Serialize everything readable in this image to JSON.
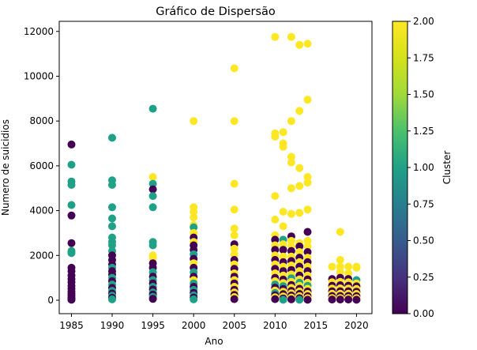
{
  "chart_data": {
    "type": "scatter",
    "title": "Gráfico de Dispersão",
    "xlabel": "Ano",
    "ylabel": "Numero de suicidios",
    "xlim": [
      1983.5,
      2021.9
    ],
    "ylim": [
      -600,
      12450
    ],
    "xticks": [
      1985,
      1990,
      1995,
      2000,
      2005,
      2010,
      2015,
      2020
    ],
    "yticks": [
      0,
      2000,
      4000,
      6000,
      8000,
      10000,
      12000
    ],
    "grid": false,
    "colorbar": {
      "label": "Cluster",
      "min": 0.0,
      "max": 2.0,
      "colormap": "viridis",
      "ticks": [
        "0.00",
        "0.25",
        "0.50",
        "0.75",
        "1.00",
        "1.25",
        "1.50",
        "1.75",
        "2.00"
      ]
    },
    "points": [
      {
        "x": 1985,
        "y": 6950,
        "c": 0
      },
      {
        "x": 1985,
        "y": 6050,
        "c": 1
      },
      {
        "x": 1985,
        "y": 5300,
        "c": 1
      },
      {
        "x": 1985,
        "y": 5150,
        "c": 1
      },
      {
        "x": 1985,
        "y": 4250,
        "c": 1
      },
      {
        "x": 1985,
        "y": 3780,
        "c": 0
      },
      {
        "x": 1985,
        "y": 2550,
        "c": 0
      },
      {
        "x": 1985,
        "y": 2200,
        "c": 1
      },
      {
        "x": 1985,
        "y": 2100,
        "c": 1
      },
      {
        "x": 1985,
        "y": 1450,
        "c": 0
      },
      {
        "x": 1985,
        "y": 1300,
        "c": 0
      },
      {
        "x": 1985,
        "y": 1100,
        "c": 0
      },
      {
        "x": 1985,
        "y": 950,
        "c": 0
      },
      {
        "x": 1985,
        "y": 800,
        "c": 0
      },
      {
        "x": 1985,
        "y": 650,
        "c": 0
      },
      {
        "x": 1985,
        "y": 520,
        "c": 0
      },
      {
        "x": 1985,
        "y": 400,
        "c": 0
      },
      {
        "x": 1985,
        "y": 300,
        "c": 0
      },
      {
        "x": 1985,
        "y": 200,
        "c": 0
      },
      {
        "x": 1985,
        "y": 120,
        "c": 0
      },
      {
        "x": 1985,
        "y": 60,
        "c": 0
      },
      {
        "x": 1985,
        "y": 20,
        "c": 0
      },
      {
        "x": 1990,
        "y": 7250,
        "c": 1
      },
      {
        "x": 1990,
        "y": 5350,
        "c": 1
      },
      {
        "x": 1990,
        "y": 5150,
        "c": 1
      },
      {
        "x": 1990,
        "y": 4150,
        "c": 1
      },
      {
        "x": 1990,
        "y": 3650,
        "c": 1
      },
      {
        "x": 1990,
        "y": 3300,
        "c": 1
      },
      {
        "x": 1990,
        "y": 2800,
        "c": 1
      },
      {
        "x": 1990,
        "y": 2600,
        "c": 1
      },
      {
        "x": 1990,
        "y": 2450,
        "c": 1
      },
      {
        "x": 1990,
        "y": 2200,
        "c": 1
      },
      {
        "x": 1990,
        "y": 2000,
        "c": 0
      },
      {
        "x": 1990,
        "y": 1800,
        "c": 0
      },
      {
        "x": 1990,
        "y": 1600,
        "c": 0
      },
      {
        "x": 1990,
        "y": 1450,
        "c": 1
      },
      {
        "x": 1990,
        "y": 1300,
        "c": 0
      },
      {
        "x": 1990,
        "y": 1150,
        "c": 0
      },
      {
        "x": 1990,
        "y": 1000,
        "c": 1
      },
      {
        "x": 1990,
        "y": 850,
        "c": 0
      },
      {
        "x": 1990,
        "y": 700,
        "c": 1
      },
      {
        "x": 1990,
        "y": 550,
        "c": 0
      },
      {
        "x": 1990,
        "y": 420,
        "c": 1
      },
      {
        "x": 1990,
        "y": 300,
        "c": 0
      },
      {
        "x": 1990,
        "y": 200,
        "c": 1
      },
      {
        "x": 1990,
        "y": 110,
        "c": 0
      },
      {
        "x": 1990,
        "y": 40,
        "c": 1
      },
      {
        "x": 1995,
        "y": 8550,
        "c": 1
      },
      {
        "x": 1995,
        "y": 5500,
        "c": 2
      },
      {
        "x": 1995,
        "y": 5200,
        "c": 1
      },
      {
        "x": 1995,
        "y": 4950,
        "c": 0
      },
      {
        "x": 1995,
        "y": 4650,
        "c": 1
      },
      {
        "x": 1995,
        "y": 4150,
        "c": 1
      },
      {
        "x": 1995,
        "y": 2600,
        "c": 1
      },
      {
        "x": 1995,
        "y": 2450,
        "c": 1
      },
      {
        "x": 1995,
        "y": 2000,
        "c": 2
      },
      {
        "x": 1995,
        "y": 1900,
        "c": 2
      },
      {
        "x": 1995,
        "y": 1650,
        "c": 0
      },
      {
        "x": 1995,
        "y": 1450,
        "c": 0
      },
      {
        "x": 1995,
        "y": 1250,
        "c": 1
      },
      {
        "x": 1995,
        "y": 1050,
        "c": 0
      },
      {
        "x": 1995,
        "y": 900,
        "c": 1
      },
      {
        "x": 1995,
        "y": 750,
        "c": 0
      },
      {
        "x": 1995,
        "y": 600,
        "c": 1
      },
      {
        "x": 1995,
        "y": 480,
        "c": 0
      },
      {
        "x": 1995,
        "y": 350,
        "c": 1
      },
      {
        "x": 1995,
        "y": 250,
        "c": 0
      },
      {
        "x": 1995,
        "y": 150,
        "c": 1
      },
      {
        "x": 1995,
        "y": 60,
        "c": 0
      },
      {
        "x": 2000,
        "y": 8000,
        "c": 2
      },
      {
        "x": 2000,
        "y": 4150,
        "c": 2
      },
      {
        "x": 2000,
        "y": 3950,
        "c": 2
      },
      {
        "x": 2000,
        "y": 3700,
        "c": 2
      },
      {
        "x": 2000,
        "y": 3350,
        "c": 2
      },
      {
        "x": 2000,
        "y": 3250,
        "c": 1
      },
      {
        "x": 2000,
        "y": 3000,
        "c": 2
      },
      {
        "x": 2000,
        "y": 2800,
        "c": 0
      },
      {
        "x": 2000,
        "y": 2600,
        "c": 2
      },
      {
        "x": 2000,
        "y": 2450,
        "c": 0
      },
      {
        "x": 2000,
        "y": 2250,
        "c": 0
      },
      {
        "x": 2000,
        "y": 2050,
        "c": 1
      },
      {
        "x": 2000,
        "y": 1850,
        "c": 0
      },
      {
        "x": 2000,
        "y": 1650,
        "c": 2
      },
      {
        "x": 2000,
        "y": 1450,
        "c": 0
      },
      {
        "x": 2000,
        "y": 1250,
        "c": 1
      },
      {
        "x": 2000,
        "y": 1050,
        "c": 0
      },
      {
        "x": 2000,
        "y": 900,
        "c": 2
      },
      {
        "x": 2000,
        "y": 750,
        "c": 1
      },
      {
        "x": 2000,
        "y": 600,
        "c": 0
      },
      {
        "x": 2000,
        "y": 460,
        "c": 1
      },
      {
        "x": 2000,
        "y": 330,
        "c": 0
      },
      {
        "x": 2000,
        "y": 220,
        "c": 1
      },
      {
        "x": 2000,
        "y": 120,
        "c": 0
      },
      {
        "x": 2000,
        "y": 40,
        "c": 1
      },
      {
        "x": 2005,
        "y": 10350,
        "c": 2
      },
      {
        "x": 2005,
        "y": 8000,
        "c": 2
      },
      {
        "x": 2005,
        "y": 5200,
        "c": 2
      },
      {
        "x": 2005,
        "y": 4050,
        "c": 2
      },
      {
        "x": 2005,
        "y": 3200,
        "c": 2
      },
      {
        "x": 2005,
        "y": 2900,
        "c": 2
      },
      {
        "x": 2005,
        "y": 2500,
        "c": 0
      },
      {
        "x": 2005,
        "y": 2300,
        "c": 2
      },
      {
        "x": 2005,
        "y": 2050,
        "c": 2
      },
      {
        "x": 2005,
        "y": 1800,
        "c": 0
      },
      {
        "x": 2005,
        "y": 1600,
        "c": 2
      },
      {
        "x": 2005,
        "y": 1400,
        "c": 0
      },
      {
        "x": 2005,
        "y": 1200,
        "c": 2
      },
      {
        "x": 2005,
        "y": 1050,
        "c": 0
      },
      {
        "x": 2005,
        "y": 900,
        "c": 2
      },
      {
        "x": 2005,
        "y": 750,
        "c": 0
      },
      {
        "x": 2005,
        "y": 600,
        "c": 2
      },
      {
        "x": 2005,
        "y": 470,
        "c": 0
      },
      {
        "x": 2005,
        "y": 350,
        "c": 2
      },
      {
        "x": 2005,
        "y": 240,
        "c": 0
      },
      {
        "x": 2005,
        "y": 140,
        "c": 2
      },
      {
        "x": 2005,
        "y": 50,
        "c": 0
      },
      {
        "x": 2010,
        "y": 11750,
        "c": 2
      },
      {
        "x": 2010,
        "y": 7450,
        "c": 2
      },
      {
        "x": 2010,
        "y": 7300,
        "c": 2
      },
      {
        "x": 2010,
        "y": 4650,
        "c": 2
      },
      {
        "x": 2010,
        "y": 3600,
        "c": 2
      },
      {
        "x": 2010,
        "y": 2900,
        "c": 2
      },
      {
        "x": 2010,
        "y": 2700,
        "c": 0
      },
      {
        "x": 2010,
        "y": 2450,
        "c": 2
      },
      {
        "x": 2010,
        "y": 2250,
        "c": 0
      },
      {
        "x": 2010,
        "y": 2000,
        "c": 2
      },
      {
        "x": 2010,
        "y": 1800,
        "c": 0
      },
      {
        "x": 2010,
        "y": 1600,
        "c": 2
      },
      {
        "x": 2010,
        "y": 1400,
        "c": 0
      },
      {
        "x": 2010,
        "y": 1200,
        "c": 2
      },
      {
        "x": 2010,
        "y": 1000,
        "c": 0
      },
      {
        "x": 2010,
        "y": 850,
        "c": 2
      },
      {
        "x": 2010,
        "y": 700,
        "c": 1
      },
      {
        "x": 2010,
        "y": 560,
        "c": 0
      },
      {
        "x": 2010,
        "y": 430,
        "c": 2
      },
      {
        "x": 2010,
        "y": 320,
        "c": 1
      },
      {
        "x": 2010,
        "y": 220,
        "c": 0
      },
      {
        "x": 2010,
        "y": 130,
        "c": 2
      },
      {
        "x": 2010,
        "y": 50,
        "c": 0
      },
      {
        "x": 2011,
        "y": 7500,
        "c": 2
      },
      {
        "x": 2011,
        "y": 7000,
        "c": 2
      },
      {
        "x": 2011,
        "y": 6850,
        "c": 2
      },
      {
        "x": 2011,
        "y": 3950,
        "c": 2
      },
      {
        "x": 2011,
        "y": 3300,
        "c": 2
      },
      {
        "x": 2011,
        "y": 2700,
        "c": 1
      },
      {
        "x": 2011,
        "y": 2500,
        "c": 2
      },
      {
        "x": 2011,
        "y": 2250,
        "c": 0
      },
      {
        "x": 2011,
        "y": 1950,
        "c": 2
      },
      {
        "x": 2011,
        "y": 1700,
        "c": 0
      },
      {
        "x": 2011,
        "y": 1500,
        "c": 2
      },
      {
        "x": 2011,
        "y": 1300,
        "c": 0
      },
      {
        "x": 2011,
        "y": 1100,
        "c": 2
      },
      {
        "x": 2011,
        "y": 920,
        "c": 0
      },
      {
        "x": 2011,
        "y": 770,
        "c": 2
      },
      {
        "x": 2011,
        "y": 630,
        "c": 1
      },
      {
        "x": 2011,
        "y": 500,
        "c": 0
      },
      {
        "x": 2011,
        "y": 380,
        "c": 2
      },
      {
        "x": 2011,
        "y": 270,
        "c": 0
      },
      {
        "x": 2011,
        "y": 170,
        "c": 2
      },
      {
        "x": 2011,
        "y": 80,
        "c": 0
      },
      {
        "x": 2011,
        "y": 20,
        "c": 1
      },
      {
        "x": 2012,
        "y": 11750,
        "c": 2
      },
      {
        "x": 2012,
        "y": 8000,
        "c": 2
      },
      {
        "x": 2012,
        "y": 6400,
        "c": 2
      },
      {
        "x": 2012,
        "y": 6150,
        "c": 2
      },
      {
        "x": 2012,
        "y": 5000,
        "c": 2
      },
      {
        "x": 2012,
        "y": 3850,
        "c": 2
      },
      {
        "x": 2012,
        "y": 2850,
        "c": 0
      },
      {
        "x": 2012,
        "y": 2650,
        "c": 2
      },
      {
        "x": 2012,
        "y": 2400,
        "c": 2
      },
      {
        "x": 2012,
        "y": 2200,
        "c": 0
      },
      {
        "x": 2012,
        "y": 1950,
        "c": 2
      },
      {
        "x": 2012,
        "y": 1750,
        "c": 0
      },
      {
        "x": 2012,
        "y": 1550,
        "c": 2
      },
      {
        "x": 2012,
        "y": 1350,
        "c": 0
      },
      {
        "x": 2012,
        "y": 1150,
        "c": 2
      },
      {
        "x": 2012,
        "y": 980,
        "c": 1
      },
      {
        "x": 2012,
        "y": 820,
        "c": 2
      },
      {
        "x": 2012,
        "y": 680,
        "c": 0
      },
      {
        "x": 2012,
        "y": 550,
        "c": 2
      },
      {
        "x": 2012,
        "y": 420,
        "c": 0
      },
      {
        "x": 2012,
        "y": 310,
        "c": 2
      },
      {
        "x": 2012,
        "y": 210,
        "c": 0
      },
      {
        "x": 2012,
        "y": 120,
        "c": 2
      },
      {
        "x": 2012,
        "y": 40,
        "c": 0
      },
      {
        "x": 2013,
        "y": 11400,
        "c": 2
      },
      {
        "x": 2013,
        "y": 8450,
        "c": 2
      },
      {
        "x": 2013,
        "y": 5900,
        "c": 2
      },
      {
        "x": 2013,
        "y": 5100,
        "c": 2
      },
      {
        "x": 2013,
        "y": 3900,
        "c": 2
      },
      {
        "x": 2013,
        "y": 2550,
        "c": 2
      },
      {
        "x": 2013,
        "y": 2400,
        "c": 0
      },
      {
        "x": 2013,
        "y": 2150,
        "c": 2
      },
      {
        "x": 2013,
        "y": 1900,
        "c": 0
      },
      {
        "x": 2013,
        "y": 1700,
        "c": 2
      },
      {
        "x": 2013,
        "y": 1500,
        "c": 0
      },
      {
        "x": 2013,
        "y": 1300,
        "c": 2
      },
      {
        "x": 2013,
        "y": 1100,
        "c": 0
      },
      {
        "x": 2013,
        "y": 930,
        "c": 2
      },
      {
        "x": 2013,
        "y": 780,
        "c": 1
      },
      {
        "x": 2013,
        "y": 640,
        "c": 2
      },
      {
        "x": 2013,
        "y": 510,
        "c": 0
      },
      {
        "x": 2013,
        "y": 390,
        "c": 2
      },
      {
        "x": 2013,
        "y": 280,
        "c": 0
      },
      {
        "x": 2013,
        "y": 180,
        "c": 2
      },
      {
        "x": 2013,
        "y": 90,
        "c": 0
      },
      {
        "x": 2013,
        "y": 20,
        "c": 1
      },
      {
        "x": 2014,
        "y": 11450,
        "c": 2
      },
      {
        "x": 2014,
        "y": 8950,
        "c": 2
      },
      {
        "x": 2014,
        "y": 5500,
        "c": 2
      },
      {
        "x": 2014,
        "y": 5250,
        "c": 2
      },
      {
        "x": 2014,
        "y": 4050,
        "c": 2
      },
      {
        "x": 2014,
        "y": 3050,
        "c": 0
      },
      {
        "x": 2014,
        "y": 2650,
        "c": 2
      },
      {
        "x": 2014,
        "y": 2400,
        "c": 2
      },
      {
        "x": 2014,
        "y": 2150,
        "c": 0
      },
      {
        "x": 2014,
        "y": 1900,
        "c": 2
      },
      {
        "x": 2014,
        "y": 1700,
        "c": 0
      },
      {
        "x": 2014,
        "y": 1500,
        "c": 2
      },
      {
        "x": 2014,
        "y": 1300,
        "c": 0
      },
      {
        "x": 2014,
        "y": 1100,
        "c": 2
      },
      {
        "x": 2014,
        "y": 930,
        "c": 0
      },
      {
        "x": 2014,
        "y": 780,
        "c": 2
      },
      {
        "x": 2014,
        "y": 640,
        "c": 1
      },
      {
        "x": 2014,
        "y": 510,
        "c": 2
      },
      {
        "x": 2014,
        "y": 390,
        "c": 0
      },
      {
        "x": 2014,
        "y": 280,
        "c": 2
      },
      {
        "x": 2014,
        "y": 180,
        "c": 0
      },
      {
        "x": 2014,
        "y": 90,
        "c": 2
      },
      {
        "x": 2014,
        "y": 20,
        "c": 0
      },
      {
        "x": 2017,
        "y": 1500,
        "c": 2
      },
      {
        "x": 2017,
        "y": 950,
        "c": 0
      },
      {
        "x": 2017,
        "y": 800,
        "c": 2
      },
      {
        "x": 2017,
        "y": 650,
        "c": 0
      },
      {
        "x": 2017,
        "y": 520,
        "c": 2
      },
      {
        "x": 2017,
        "y": 400,
        "c": 0
      },
      {
        "x": 2017,
        "y": 290,
        "c": 2
      },
      {
        "x": 2017,
        "y": 190,
        "c": 0
      },
      {
        "x": 2017,
        "y": 100,
        "c": 2
      },
      {
        "x": 2017,
        "y": 30,
        "c": 0
      },
      {
        "x": 2018,
        "y": 3050,
        "c": 2
      },
      {
        "x": 2018,
        "y": 1800,
        "c": 2
      },
      {
        "x": 2018,
        "y": 1500,
        "c": 2
      },
      {
        "x": 2018,
        "y": 1250,
        "c": 2
      },
      {
        "x": 2018,
        "y": 1000,
        "c": 0
      },
      {
        "x": 2018,
        "y": 820,
        "c": 2
      },
      {
        "x": 2018,
        "y": 670,
        "c": 0
      },
      {
        "x": 2018,
        "y": 530,
        "c": 2
      },
      {
        "x": 2018,
        "y": 400,
        "c": 0
      },
      {
        "x": 2018,
        "y": 290,
        "c": 2
      },
      {
        "x": 2018,
        "y": 190,
        "c": 0
      },
      {
        "x": 2018,
        "y": 100,
        "c": 2
      },
      {
        "x": 2018,
        "y": 30,
        "c": 0
      },
      {
        "x": 2019,
        "y": 1500,
        "c": 2
      },
      {
        "x": 2019,
        "y": 1200,
        "c": 2
      },
      {
        "x": 2019,
        "y": 950,
        "c": 0
      },
      {
        "x": 2019,
        "y": 800,
        "c": 2
      },
      {
        "x": 2019,
        "y": 650,
        "c": 0
      },
      {
        "x": 2019,
        "y": 520,
        "c": 2
      },
      {
        "x": 2019,
        "y": 400,
        "c": 0
      },
      {
        "x": 2019,
        "y": 290,
        "c": 2
      },
      {
        "x": 2019,
        "y": 190,
        "c": 0
      },
      {
        "x": 2019,
        "y": 100,
        "c": 2
      },
      {
        "x": 2019,
        "y": 30,
        "c": 0
      },
      {
        "x": 2020,
        "y": 1500,
        "c": 2
      },
      {
        "x": 2020,
        "y": 1450,
        "c": 2
      },
      {
        "x": 2020,
        "y": 900,
        "c": 1
      },
      {
        "x": 2020,
        "y": 750,
        "c": 2
      },
      {
        "x": 2020,
        "y": 620,
        "c": 0
      },
      {
        "x": 2020,
        "y": 500,
        "c": 2
      },
      {
        "x": 2020,
        "y": 380,
        "c": 0
      },
      {
        "x": 2020,
        "y": 280,
        "c": 2
      },
      {
        "x": 2020,
        "y": 180,
        "c": 0
      },
      {
        "x": 2020,
        "y": 90,
        "c": 2
      },
      {
        "x": 2020,
        "y": 20,
        "c": 0
      }
    ]
  }
}
